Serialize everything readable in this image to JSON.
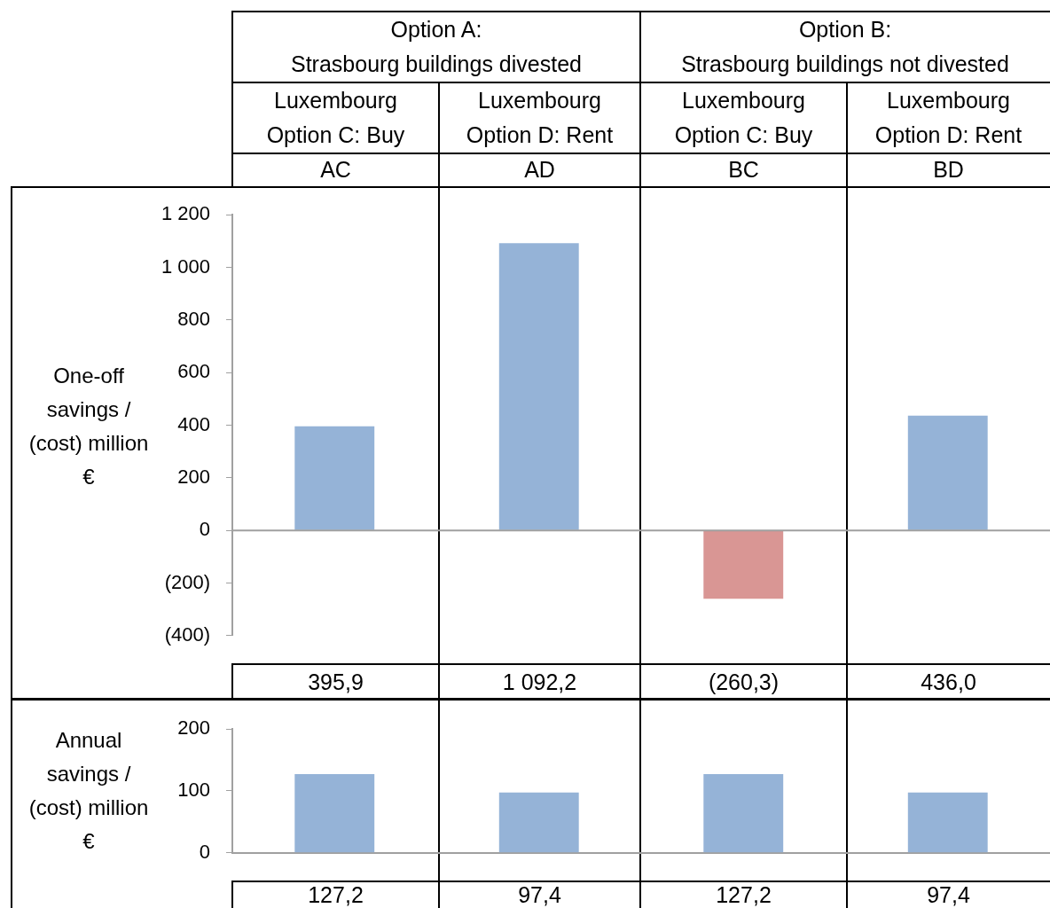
{
  "chart_data": [
    {
      "type": "bar",
      "categories": [
        "AC",
        "AD",
        "BC",
        "BD"
      ],
      "values": [
        395.9,
        1092.2,
        -260.3,
        436.0
      ],
      "colors": [
        "#95b3d7",
        "#95b3d7",
        "#d99694",
        "#95b3d7"
      ],
      "value_labels": [
        "395,9",
        "1 092,2",
        "(260,3)",
        "436,0"
      ],
      "ylabel": "One-off savings / (cost) million €",
      "annotations": [
        "Option A:\nStrasbourg buildings divested",
        "Option B:\nStrasbourg buildings not divested",
        "Luxembourg\nOption C: Buy",
        "Luxembourg\nOption D: Rent",
        "Luxembourg\nOption C: Buy",
        "Luxembourg\nOption D: Rent"
      ],
      "ylim": [
        -400,
        1200
      ],
      "yticks": [
        {
          "value": -400,
          "label": "(400)"
        },
        {
          "value": -200,
          "label": "(200)"
        },
        0,
        200,
        400,
        600,
        800,
        {
          "value": 1000,
          "label": "1 000"
        },
        {
          "value": 1200,
          "label": "1 200"
        }
      ],
      "ref_lines": [
        {
          "axis": "y",
          "value": 0,
          "color": "#a0a0a0"
        }
      ],
      "grid": false,
      "legend": false
    },
    {
      "type": "bar",
      "categories": [
        null,
        null,
        null,
        null
      ],
      "values": [
        127.2,
        97.4,
        127.2,
        97.4
      ],
      "color": "#95b3d7",
      "value_labels": [
        "127,2",
        "97,4",
        "127,2",
        "97,4"
      ],
      "ylabel": "Annual savings / (cost) million €",
      "ylim": [
        0,
        200
      ],
      "yticks": [
        0,
        100,
        200
      ],
      "grid": false,
      "legend": false
    }
  ]
}
